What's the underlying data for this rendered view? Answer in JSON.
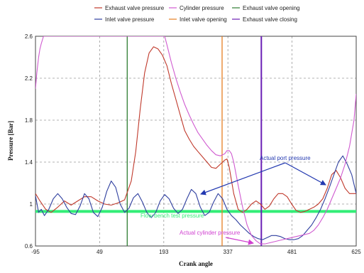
{
  "chart_data": {
    "type": "line",
    "title": "",
    "xlabel": "Crank angle",
    "ylabel": "Pressure [Bar]",
    "xlim": [
      -95,
      625
    ],
    "ylim": [
      0.6,
      2.6
    ],
    "x_ticks": [
      -95,
      49,
      193,
      337,
      481,
      625
    ],
    "y_ticks": [
      0.6,
      1.0,
      1.4,
      1.8,
      2.2,
      2.6
    ],
    "y_tick_labels": [
      "0.6",
      "1",
      "1.4",
      "1.8",
      "2.2",
      "2.6"
    ],
    "grid": true,
    "legend_position": "top",
    "series": [
      {
        "name": "Exhaust valve pressure",
        "color": "#c0392b",
        "x": [
          -95,
          -85,
          -72,
          -60,
          -45,
          -30,
          -15,
          0,
          15,
          30,
          45,
          60,
          75,
          90,
          105,
          120,
          130,
          140,
          150,
          160,
          170,
          180,
          190,
          200,
          210,
          220,
          230,
          240,
          250,
          260,
          270,
          280,
          290,
          300,
          310,
          320,
          330,
          335,
          340,
          350,
          360,
          370,
          380,
          390,
          400,
          410,
          420,
          430,
          440,
          450,
          460,
          470,
          480,
          490,
          500,
          510,
          520,
          530,
          540,
          550,
          560,
          570,
          580,
          590,
          600,
          610,
          625
        ],
        "y": [
          1.1,
          1.03,
          0.95,
          0.92,
          0.97,
          1.03,
          0.99,
          1.03,
          1.07,
          1.07,
          1.03,
          1.0,
          0.99,
          1.01,
          1.04,
          1.22,
          1.5,
          1.9,
          2.25,
          2.44,
          2.5,
          2.48,
          2.42,
          2.32,
          2.15,
          2.0,
          1.85,
          1.7,
          1.62,
          1.55,
          1.5,
          1.45,
          1.4,
          1.35,
          1.34,
          1.38,
          1.42,
          1.43,
          1.35,
          1.1,
          0.95,
          0.92,
          0.95,
          1.0,
          1.03,
          1.0,
          0.95,
          0.98,
          1.05,
          1.1,
          1.1,
          1.07,
          1.0,
          0.94,
          0.92,
          0.93,
          0.95,
          0.97,
          1.0,
          1.05,
          1.15,
          1.28,
          1.32,
          1.25,
          1.15,
          1.1,
          1.1
        ]
      },
      {
        "name": "Inlet valve pressure",
        "color": "#2f3f9f",
        "x": [
          -95,
          -88,
          -82,
          -75,
          -65,
          -55,
          -45,
          -35,
          -25,
          -15,
          -5,
          5,
          15,
          25,
          35,
          45,
          55,
          65,
          75,
          85,
          95,
          105,
          115,
          125,
          135,
          145,
          155,
          165,
          175,
          185,
          195,
          205,
          215,
          225,
          235,
          245,
          255,
          265,
          275,
          285,
          295,
          305,
          315,
          325,
          335,
          345,
          355,
          365,
          375,
          385,
          395,
          405,
          415,
          425,
          435,
          445,
          455,
          465,
          475,
          485,
          495,
          505,
          515,
          525,
          535,
          545,
          555,
          565,
          575,
          585,
          595,
          605,
          615,
          625
        ],
        "y": [
          1.08,
          0.92,
          0.95,
          0.89,
          0.95,
          1.05,
          1.1,
          1.05,
          0.97,
          0.91,
          0.9,
          0.98,
          1.1,
          1.05,
          0.92,
          0.88,
          0.97,
          1.12,
          1.22,
          1.16,
          1.0,
          0.92,
          0.96,
          1.06,
          1.1,
          1.02,
          0.92,
          0.87,
          0.92,
          1.03,
          1.09,
          1.05,
          0.96,
          0.91,
          0.95,
          1.05,
          1.14,
          1.1,
          0.97,
          0.89,
          0.92,
          1.02,
          1.1,
          1.05,
          0.95,
          0.89,
          0.85,
          0.8,
          0.76,
          0.72,
          0.69,
          0.67,
          0.66,
          0.68,
          0.7,
          0.7,
          0.69,
          0.67,
          0.66,
          0.66,
          0.67,
          0.7,
          0.75,
          0.8,
          0.87,
          0.95,
          1.05,
          1.16,
          1.28,
          1.4,
          1.46,
          1.38,
          1.28,
          1.1
        ]
      },
      {
        "name": "Cylinder pressure",
        "color": "#d05bd0",
        "x": [
          -95,
          -92,
          -88,
          -85,
          -82,
          -79,
          -77,
          -75,
          195,
          200,
          210,
          220,
          230,
          240,
          250,
          260,
          270,
          280,
          290,
          300,
          310,
          320,
          330,
          335,
          340,
          345,
          350,
          360,
          370,
          380,
          390,
          400,
          410,
          420,
          430,
          440,
          450,
          460,
          470,
          480,
          490,
          500,
          510,
          520,
          530,
          540,
          550,
          560,
          570,
          580,
          590,
          600,
          610,
          620,
          625
        ],
        "y": [
          2.1,
          2.25,
          2.4,
          2.48,
          2.53,
          2.57,
          2.6,
          2.6,
          2.6,
          2.52,
          2.35,
          2.2,
          2.07,
          1.95,
          1.85,
          1.76,
          1.68,
          1.62,
          1.56,
          1.51,
          1.47,
          1.46,
          1.48,
          1.51,
          1.51,
          1.48,
          1.4,
          1.18,
          0.97,
          0.8,
          0.7,
          0.65,
          0.62,
          0.62,
          0.63,
          0.64,
          0.65,
          0.66,
          0.67,
          0.68,
          0.69,
          0.7,
          0.71,
          0.72,
          0.75,
          0.8,
          0.87,
          0.95,
          1.05,
          1.15,
          1.25,
          1.38,
          1.55,
          1.8,
          2.05
        ]
      },
      {
        "name": "Inlet valve opening",
        "color": "#e67e22",
        "x": [
          324,
          324
        ],
        "y": [
          0.6,
          2.6
        ]
      },
      {
        "name": "Exhaust valve opening",
        "color": "#2e7d32",
        "x": [
          111,
          111
        ],
        "y": [
          0.6,
          2.6
        ]
      },
      {
        "name": "Exhaust valve closing",
        "color": "#6a1fb5",
        "x": [
          412,
          412
        ],
        "y": [
          0.6,
          2.6
        ]
      }
    ],
    "annotations": [
      {
        "text": "Flow bench test pressure",
        "color": "#33ee77",
        "y": 0.93
      },
      {
        "text": "Actual port pressure",
        "color": "#2238b0"
      },
      {
        "text": "Actual cylinder pressure",
        "color": "#d040d0"
      }
    ]
  }
}
